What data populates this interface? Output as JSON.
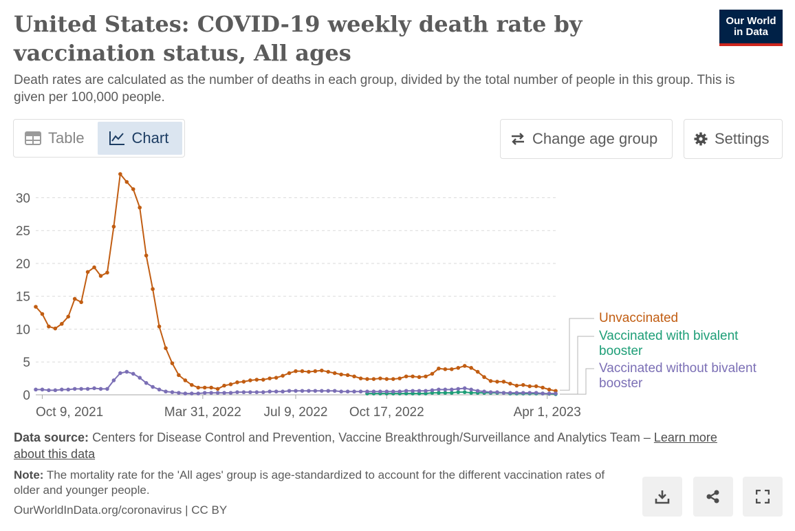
{
  "header": {
    "title": "United States: COVID-19 weekly death rate by vaccination status, All ages",
    "subtitle": "Death rates are calculated as the number of deaths in each group, divided by the total number of people in this group. This is given per 100,000 people.",
    "logo_line1": "Our World",
    "logo_line2": "in Data"
  },
  "controls": {
    "tab_table": "Table",
    "tab_chart": "Chart",
    "change_age": "Change age group",
    "settings": "Settings"
  },
  "colors": {
    "unvaccinated": "#c15d12",
    "bivalent": "#1e9e77",
    "without_bivalent": "#7b6fb5",
    "logo_bg": "#002147",
    "logo_accent": "#ce261e"
  },
  "chart_data": {
    "type": "line",
    "x_start": "2021-10-02",
    "x_step_days": 7,
    "x_ticks": [
      {
        "label": "Oct 9, 2021",
        "index": 1
      },
      {
        "label": "Mar 31, 2022",
        "index": 25.7
      },
      {
        "label": "Jul 9, 2022",
        "index": 40
      },
      {
        "label": "Oct 17, 2022",
        "index": 54
      },
      {
        "label": "Apr 1, 2023",
        "index": 78.7
      }
    ],
    "y_ticks": [
      0,
      5,
      10,
      15,
      20,
      25,
      30
    ],
    "ylim": [
      0,
      33.5
    ],
    "grid": true,
    "legend": "right",
    "series": [
      {
        "name": "Unvaccinated",
        "color_key": "unvaccinated",
        "start_index": 0,
        "values": [
          13.4,
          12.3,
          10.4,
          10.1,
          10.8,
          11.9,
          14.6,
          14.1,
          18.7,
          19.4,
          18.1,
          18.6,
          25.6,
          33.6,
          32.4,
          31.3,
          28.5,
          21.2,
          16.1,
          10.4,
          7.1,
          4.8,
          3.0,
          2.2,
          1.5,
          1.1,
          1.1,
          1.1,
          0.9,
          1.4,
          1.6,
          1.9,
          2.0,
          2.2,
          2.3,
          2.3,
          2.5,
          2.6,
          2.9,
          3.3,
          3.6,
          3.6,
          3.5,
          3.6,
          3.7,
          3.5,
          3.3,
          3.1,
          3.0,
          2.8,
          2.5,
          2.4,
          2.4,
          2.5,
          2.4,
          2.4,
          2.5,
          2.8,
          2.8,
          2.7,
          2.8,
          3.2,
          4.0,
          3.9,
          3.9,
          4.1,
          4.4,
          4.1,
          3.5,
          2.7,
          2.1,
          2.0,
          2.0,
          1.7,
          1.4,
          1.5,
          1.3,
          1.3,
          1.1,
          0.8,
          0.6
        ]
      },
      {
        "name": "Vaccinated with bivalent booster",
        "color_key": "bivalent",
        "start_index": 51,
        "values": [
          0.2,
          0.2,
          0.2,
          0.2,
          0.2,
          0.2,
          0.2,
          0.2,
          0.2,
          0.2,
          0.3,
          0.3,
          0.3,
          0.3,
          0.4,
          0.4,
          0.3,
          0.3,
          0.3,
          0.3,
          0.3,
          0.3,
          0.2,
          0.2,
          0.2,
          0.2,
          0.2,
          0.2,
          0.15,
          0.1
        ]
      },
      {
        "name": "Vaccinated without bivalent booster",
        "color_key": "without_bivalent",
        "start_index": 0,
        "values": [
          0.8,
          0.8,
          0.7,
          0.7,
          0.8,
          0.8,
          0.9,
          0.9,
          0.9,
          1.0,
          0.9,
          0.9,
          2.2,
          3.3,
          3.5,
          3.2,
          2.6,
          1.8,
          1.2,
          0.8,
          0.5,
          0.4,
          0.3,
          0.2,
          0.2,
          0.2,
          0.3,
          0.3,
          0.3,
          0.3,
          0.3,
          0.4,
          0.4,
          0.4,
          0.4,
          0.4,
          0.5,
          0.5,
          0.5,
          0.6,
          0.6,
          0.6,
          0.6,
          0.6,
          0.6,
          0.6,
          0.6,
          0.5,
          0.5,
          0.5,
          0.5,
          0.5,
          0.5,
          0.5,
          0.5,
          0.5,
          0.5,
          0.6,
          0.6,
          0.6,
          0.6,
          0.7,
          0.8,
          0.8,
          0.8,
          0.9,
          1.0,
          0.8,
          0.6,
          0.5,
          0.4,
          0.4,
          0.3,
          0.3,
          0.3,
          0.3,
          0.3,
          0.3,
          0.2,
          0.2,
          0.2
        ]
      }
    ],
    "legend_labels": [
      {
        "lines": [
          "Unvaccinated"
        ],
        "color_key": "unvaccinated"
      },
      {
        "lines": [
          "Vaccinated with bivalent",
          "booster"
        ],
        "color_key": "bivalent"
      },
      {
        "lines": [
          "Vaccinated without bivalent",
          "booster"
        ],
        "color_key": "without_bivalent"
      }
    ]
  },
  "footer": {
    "source_label": "Data source:",
    "source_text": "Centers for Disease Control and Prevention, Vaccine Breakthrough/Surveillance and Analytics Team –",
    "source_link": "Learn more about this data",
    "note_label": "Note:",
    "note_text": "The mortality rate for the 'All ages' group is age-standardized to account for the different vaccination rates of older and younger people.",
    "credit": "OurWorldInData.org/coronavirus | CC BY"
  }
}
